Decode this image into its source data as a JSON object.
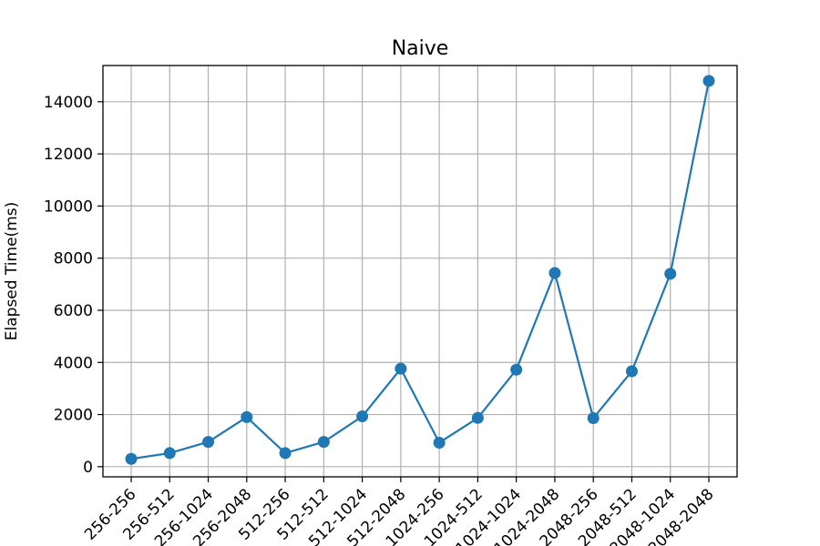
{
  "chart_data": {
    "type": "line",
    "title": "Naive",
    "xlabel": "",
    "ylabel": "Elapsed Time(ms)",
    "categories": [
      "256-256",
      "256-512",
      "256-1024",
      "256-2048",
      "512-256",
      "512-512",
      "512-1024",
      "512-2048",
      "1024-256",
      "1024-512",
      "1024-1024",
      "1024-2048",
      "2048-256",
      "2048-512",
      "2048-1024",
      "2048-2048"
    ],
    "series": [
      {
        "values": [
          300,
          520,
          950,
          1900,
          520,
          950,
          1930,
          3760,
          920,
          1870,
          3720,
          7430,
          1860,
          3660,
          7400,
          14800
        ]
      }
    ],
    "ylim": [
      -390,
      15390
    ],
    "yticks": [
      0,
      2000,
      4000,
      6000,
      8000,
      10000,
      12000,
      14000
    ],
    "grid": true,
    "color": "#1f77b4"
  }
}
